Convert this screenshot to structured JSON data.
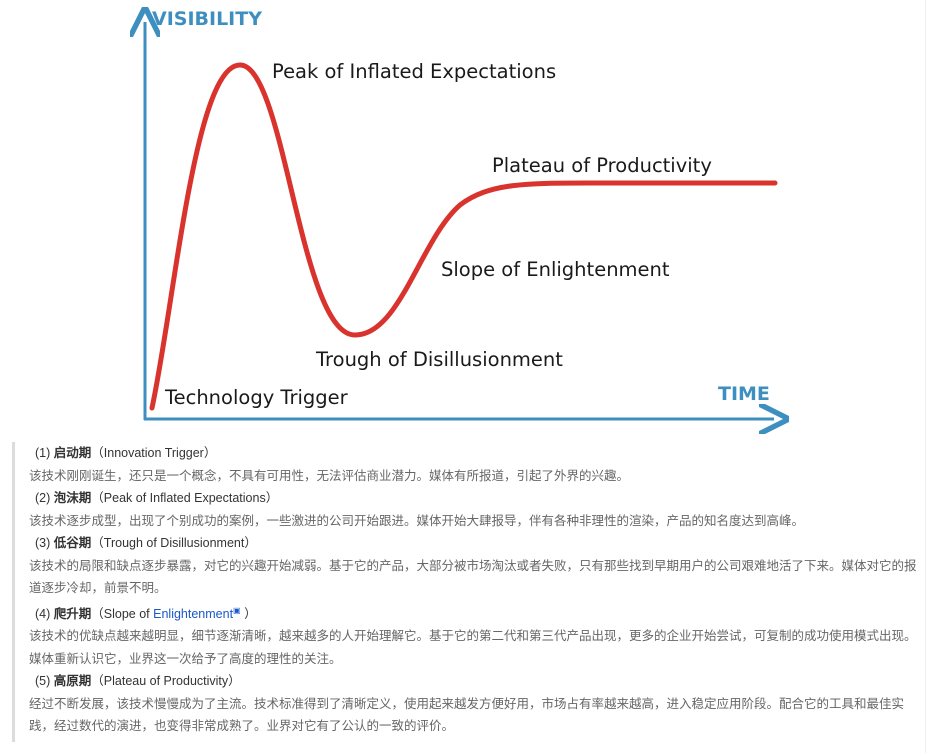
{
  "diagram": {
    "y_axis_label": "VISIBILITY",
    "x_axis_label": "TIME",
    "phases": [
      "Technology Trigger",
      "Peak of Inflated Expectations",
      "Trough of Disillusionment",
      "Slope of Enlightenment",
      "Plateau of Productivity"
    ],
    "curve_color": "#d9332e",
    "axis_color": "#3d8fbf"
  },
  "sections": [
    {
      "heading_num": "(1)",
      "heading_cn": "启动期",
      "heading_en": "（Innovation Trigger）",
      "body": "该技术刚刚诞生，还只是一个概念，不具有可用性，无法评估商业潜力。媒体有所报道，引起了外界的兴趣。"
    },
    {
      "heading_num": "(2)",
      "heading_cn": "泡沫期",
      "heading_en": "（Peak of Inflated Expectations）",
      "body": "该技术逐步成型，出现了个别成功的案例，一些激进的公司开始跟进。媒体开始大肆报导，伴有各种非理性的渲染，产品的知名度达到高峰。"
    },
    {
      "heading_num": "(3)",
      "heading_cn": "低谷期",
      "heading_en": "（Trough of Disillusionment）",
      "body": "该技术的局限和缺点逐步暴露，对它的兴趣开始减弱。基于它的产品，大部分被市场淘汰或者失败，只有那些找到早期用户的公司艰难地活了下来。媒体对它的报道逐步冷却，前景不明。"
    },
    {
      "heading_num": "(4)",
      "heading_cn": "爬升期",
      "heading_en_pre": "（Slope of ",
      "heading_link": "Enlightenment",
      "heading_en_post": " ）",
      "body": "该技术的优缺点越来越明显，细节逐渐清晰，越来越多的人开始理解它。基于它的第二代和第三代产品出现，更多的企业开始尝试，可复制的成功使用模式出现。媒体重新认识它，业界这一次给予了高度的理性的关注。"
    },
    {
      "heading_num": "(5)",
      "heading_cn": "高原期",
      "heading_en": "（Plateau of Productivity）",
      "body": "经过不断发展，该技术慢慢成为了主流。技术标准得到了清晰定义，使用起来越发方便好用，市场占有率越来越高，进入稳定应用阶段。配合它的工具和最佳实践，经过数代的演进，也变得非常成熟了。业界对它有了公认的一致的评价。"
    }
  ]
}
